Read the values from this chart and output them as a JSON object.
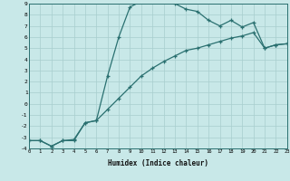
{
  "title": "",
  "xlabel": "Humidex (Indice chaleur)",
  "bg_color": "#c8e8e8",
  "line_color": "#2a7070",
  "grid_color": "#a8cece",
  "curve1_x": [
    0,
    1,
    2,
    3,
    4,
    5,
    6,
    7,
    8,
    9,
    10,
    11,
    12,
    13,
    14,
    15,
    16,
    17,
    18,
    19,
    20,
    21,
    22,
    23
  ],
  "curve1_y": [
    -3.3,
    -3.3,
    -3.8,
    -3.3,
    -3.3,
    -1.7,
    -1.5,
    2.5,
    6.0,
    8.7,
    9.2,
    9.3,
    9.3,
    9.0,
    8.5,
    8.3,
    7.5,
    7.0,
    7.5,
    6.9,
    7.3,
    5.0,
    5.3,
    5.4
  ],
  "curve2_x": [
    0,
    1,
    2,
    3,
    4,
    5,
    6,
    7,
    8,
    9,
    10,
    11,
    12,
    13,
    14,
    15,
    16,
    17,
    18,
    19,
    20,
    21,
    22,
    23
  ],
  "curve2_y": [
    -3.3,
    -3.3,
    -3.8,
    -3.3,
    -3.2,
    -1.7,
    -1.5,
    -0.5,
    0.5,
    1.5,
    2.5,
    3.2,
    3.8,
    4.3,
    4.8,
    5.0,
    5.3,
    5.6,
    5.9,
    6.1,
    6.4,
    5.0,
    5.3,
    5.4
  ],
  "ylim": [
    -4,
    9
  ],
  "xlim": [
    0,
    23
  ],
  "yticks": [
    -4,
    -3,
    -2,
    -1,
    0,
    1,
    2,
    3,
    4,
    5,
    6,
    7,
    8,
    9
  ],
  "xticks": [
    0,
    1,
    2,
    3,
    4,
    5,
    6,
    7,
    8,
    9,
    10,
    11,
    12,
    13,
    14,
    15,
    16,
    17,
    18,
    19,
    20,
    21,
    22,
    23
  ]
}
